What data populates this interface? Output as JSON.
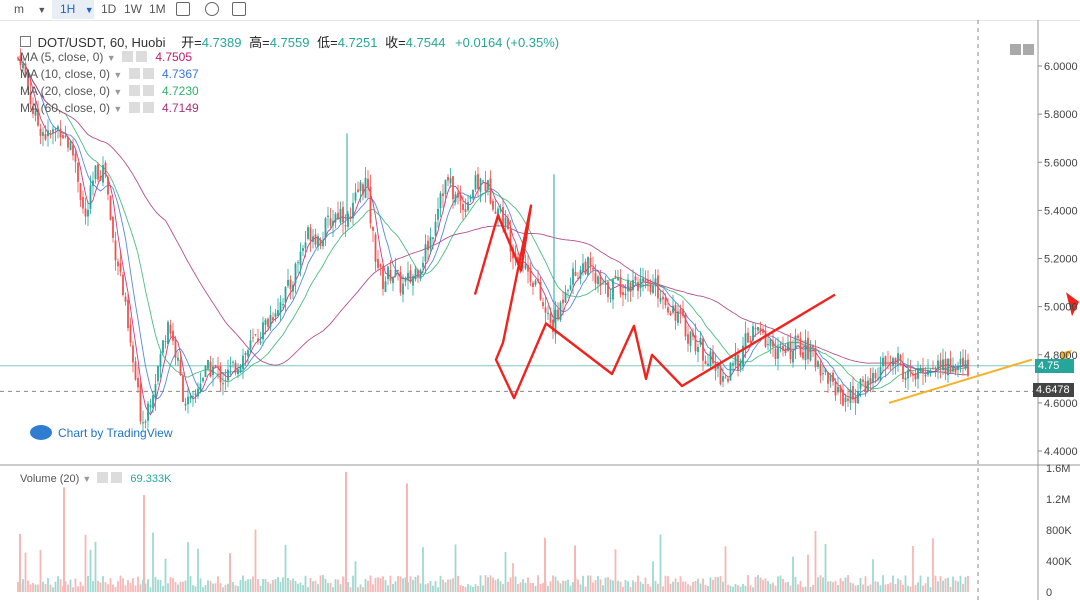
{
  "toolbar": {
    "interval_menu": "m",
    "interval_active": "1H",
    "intervals": [
      "1D",
      "1W",
      "1M"
    ]
  },
  "header": {
    "symbol": "DOT/USDT, 60, Huobi",
    "open_label": "开=",
    "open": "4.7389",
    "high_label": "高=",
    "high": "4.7559",
    "low_label": "低=",
    "low": "4.7251",
    "close_label": "收=",
    "close": "4.7544",
    "change": "+0.0164 (+0.35%)"
  },
  "indicators": [
    {
      "label": "MA (5, close, 0)",
      "value": "4.7505",
      "color": "#c2186b"
    },
    {
      "label": "MA (10, close, 0)",
      "value": "4.7367",
      "color": "#3a74d8"
    },
    {
      "label": "MA (20, close, 0)",
      "value": "4.7230",
      "color": "#2eb36b"
    },
    {
      "label": "MA (60, close, 0)",
      "value": "4.7149",
      "color": "#a8327a"
    }
  ],
  "volume": {
    "label": "Volume (20)",
    "value": "69.333K"
  },
  "watermark": "Chart by TradingView",
  "price_axis": {
    "ticks": [
      "6.0000",
      "5.8000",
      "5.6000",
      "5.4000",
      "5.2000",
      "5.0000",
      "4.8000",
      "4.6000",
      "4.4000"
    ],
    "current_label": "4.75",
    "dashed_label": "4.6478"
  },
  "volume_axis": {
    "ticks": [
      "1.6M",
      "1.2M",
      "800K",
      "400K",
      "0"
    ]
  },
  "colors": {
    "up": "#26a69a",
    "down": "#ef5350",
    "wave": "#f0231e",
    "trend": "#f5b22b"
  },
  "chart_data": {
    "type": "candlestick",
    "symbol": "DOT/USDT",
    "interval": "60",
    "exchange": "Huobi",
    "ylim": [
      4.36,
      6.16
    ],
    "close_path": [
      [
        0,
        5.7
      ],
      [
        8,
        5.95
      ],
      [
        20,
        6.05
      ],
      [
        35,
        5.78
      ],
      [
        48,
        5.7
      ],
      [
        60,
        5.75
      ],
      [
        75,
        5.62
      ],
      [
        85,
        5.35
      ],
      [
        95,
        5.55
      ],
      [
        105,
        5.58
      ],
      [
        112,
        5.3
      ],
      [
        120,
        5.15
      ],
      [
        128,
        4.9
      ],
      [
        136,
        4.68
      ],
      [
        142,
        4.52
      ],
      [
        150,
        4.62
      ],
      [
        160,
        4.78
      ],
      [
        168,
        4.95
      ],
      [
        176,
        4.8
      ],
      [
        184,
        4.62
      ],
      [
        192,
        4.58
      ],
      [
        200,
        4.7
      ],
      [
        212,
        4.75
      ],
      [
        224,
        4.7
      ],
      [
        236,
        4.76
      ],
      [
        248,
        4.82
      ],
      [
        262,
        4.9
      ],
      [
        276,
        5.0
      ],
      [
        290,
        5.08
      ],
      [
        300,
        5.22
      ],
      [
        310,
        5.32
      ],
      [
        320,
        5.28
      ],
      [
        330,
        5.36
      ],
      [
        340,
        5.4
      ],
      [
        350,
        5.35
      ],
      [
        358,
        5.48
      ],
      [
        366,
        5.52
      ],
      [
        374,
        5.25
      ],
      [
        382,
        5.1
      ],
      [
        392,
        5.15
      ],
      [
        402,
        5.08
      ],
      [
        412,
        5.12
      ],
      [
        422,
        5.2
      ],
      [
        432,
        5.3
      ],
      [
        440,
        5.48
      ],
      [
        448,
        5.52
      ],
      [
        456,
        5.45
      ],
      [
        464,
        5.42
      ],
      [
        474,
        5.5
      ],
      [
        484,
        5.52
      ],
      [
        494,
        5.44
      ],
      [
        504,
        5.36
      ],
      [
        512,
        5.25
      ],
      [
        520,
        5.2
      ],
      [
        528,
        5.15
      ],
      [
        536,
        5.1
      ],
      [
        544,
        4.98
      ],
      [
        552,
        4.92
      ],
      [
        558,
        4.96
      ],
      [
        566,
        5.1
      ],
      [
        576,
        5.14
      ],
      [
        586,
        5.18
      ],
      [
        596,
        5.1
      ],
      [
        606,
        5.06
      ],
      [
        616,
        5.1
      ],
      [
        626,
        5.08
      ],
      [
        636,
        5.12
      ],
      [
        646,
        5.06
      ],
      [
        656,
        5.08
      ],
      [
        666,
        5.02
      ],
      [
        676,
        4.98
      ],
      [
        686,
        4.9
      ],
      [
        696,
        4.85
      ],
      [
        706,
        4.8
      ],
      [
        716,
        4.74
      ],
      [
        726,
        4.7
      ],
      [
        736,
        4.76
      ],
      [
        746,
        4.85
      ],
      [
        756,
        4.9
      ],
      [
        766,
        4.86
      ],
      [
        776,
        4.82
      ],
      [
        786,
        4.8
      ],
      [
        796,
        4.84
      ],
      [
        806,
        4.82
      ],
      [
        816,
        4.78
      ],
      [
        826,
        4.72
      ],
      [
        836,
        4.66
      ],
      [
        846,
        4.62
      ],
      [
        856,
        4.64
      ],
      [
        866,
        4.68
      ],
      [
        876,
        4.72
      ],
      [
        886,
        4.76
      ],
      [
        896,
        4.78
      ],
      [
        906,
        4.72
      ],
      [
        916,
        4.7
      ],
      [
        926,
        4.74
      ],
      [
        936,
        4.76
      ],
      [
        946,
        4.75
      ]
    ],
    "spikes": [
      [
        63,
        5.72
      ],
      [
        171,
        5.42
      ],
      [
        270,
        5.55
      ]
    ],
    "wave_projection_red": [
      [
        4.75,
        5.05
      ],
      [
        4.98,
        5.38
      ],
      [
        5.21,
        5.15
      ],
      [
        5.31,
        5.42
      ],
      [
        5.03,
        4.85
      ],
      [
        4.96,
        4.78
      ],
      [
        5.14,
        4.62
      ],
      [
        5.46,
        4.93
      ],
      [
        6.12,
        4.72
      ],
      [
        6.34,
        4.92
      ],
      [
        6.46,
        4.7
      ],
      [
        6.52,
        4.8
      ],
      [
        6.82,
        4.67
      ],
      [
        8.35,
        5.05
      ]
    ],
    "trend_line_orange": [
      [
        5.36,
        4.6
      ],
      [
        6.72,
        4.78
      ]
    ],
    "volume_unit": "K"
  }
}
